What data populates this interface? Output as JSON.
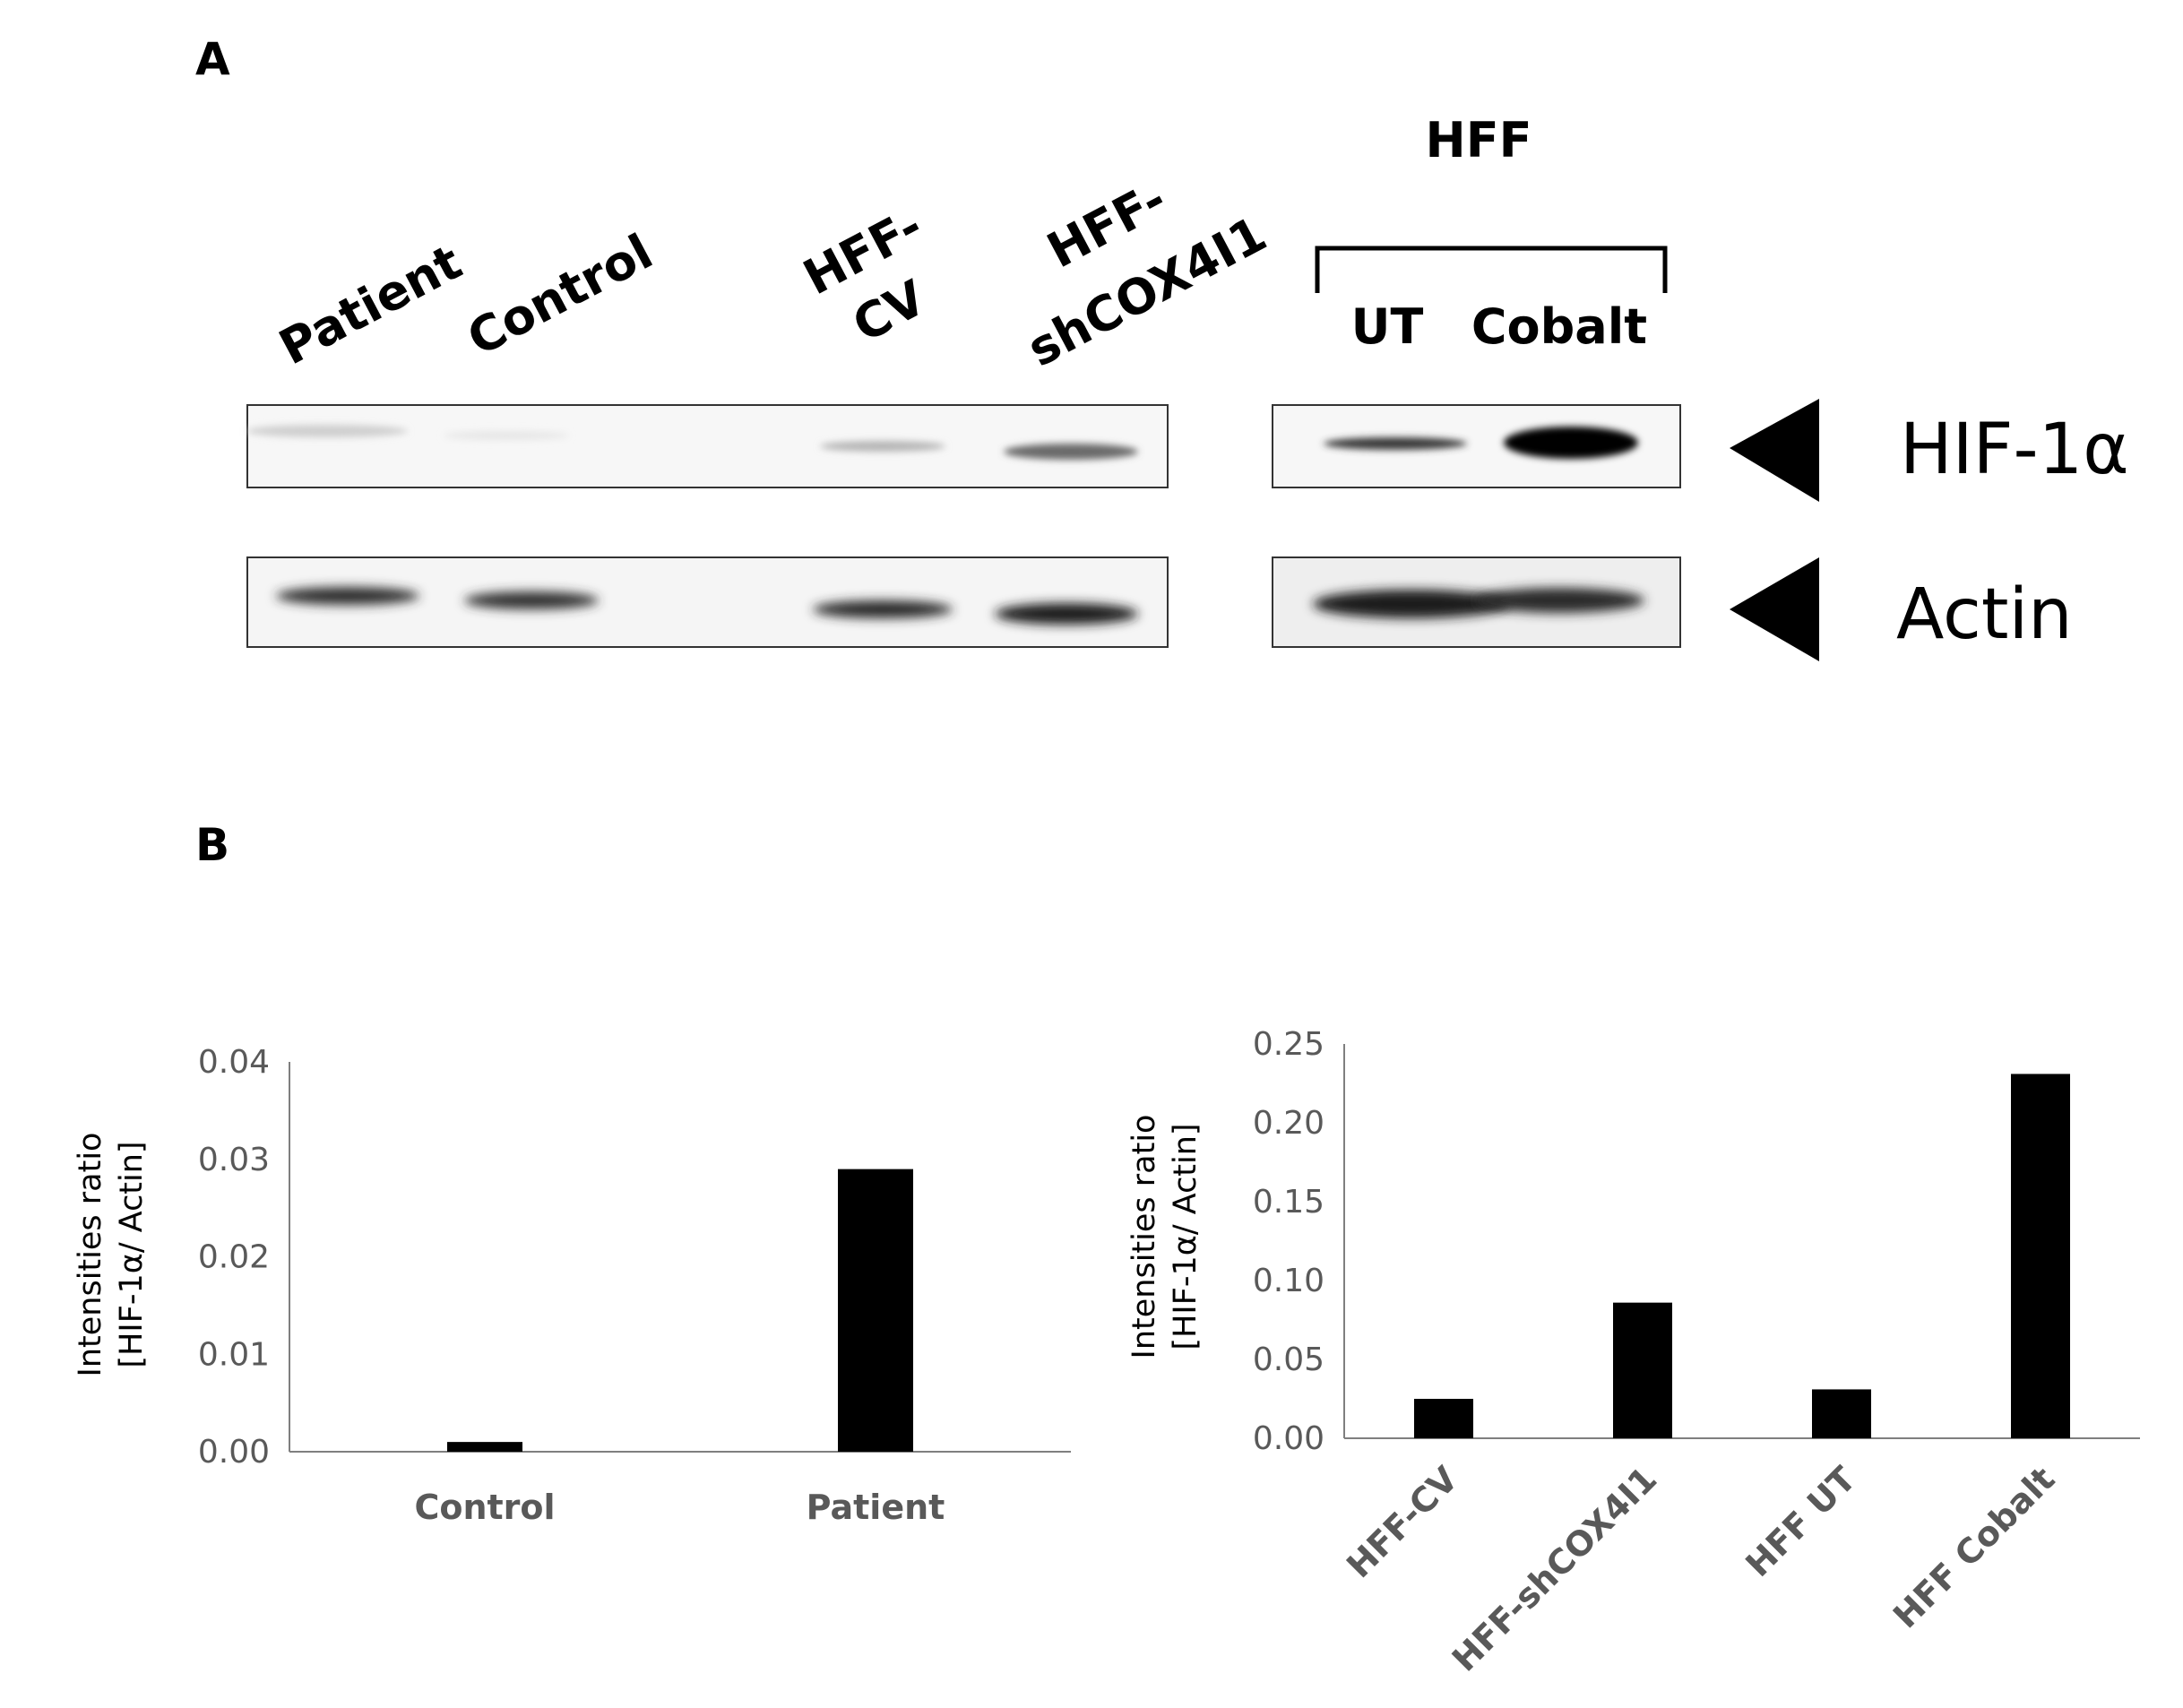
{
  "panels": {
    "a_label": "A",
    "b_label": "B"
  },
  "blot": {
    "group_header": "HFF",
    "lanes_left": [
      {
        "label": "Patient"
      },
      {
        "label": "Control"
      },
      {
        "label_line1": "HFF-",
        "label_line2": "CV"
      },
      {
        "label_line1": "HFF-",
        "label_line2": "shCOX4I1"
      }
    ],
    "lanes_right": [
      "UT",
      "Cobalt"
    ],
    "bands": [
      "HIF-1α",
      "Actin"
    ],
    "relative_band_intensity": {
      "HIF-1α": {
        "Patient": 0.08,
        "Control": 0.04,
        "HFF-CV": 0.25,
        "HFF-shCOX4I1": 0.7,
        "UT": 0.85,
        "Cobalt": 1.0
      },
      "Actin": {
        "Patient": 0.85,
        "Control": 0.8,
        "HFF-CV": 0.8,
        "HFF-shCOX4I1": 0.9,
        "UT": 0.95,
        "Cobalt": 0.9
      }
    }
  },
  "colors": {
    "bar": "#000000",
    "axis": "#7f7f7f",
    "tick_text": "#595959"
  },
  "chart_data": [
    {
      "type": "bar",
      "categories": [
        "Control",
        "Patient"
      ],
      "values": [
        0.001,
        0.029
      ],
      "ylabel_line1": "Intensities ratio",
      "ylabel_line2": "[HIF-1α/ Actin]",
      "ylim": [
        0,
        0.04
      ],
      "yticks": [
        "0.00",
        "0.01",
        "0.02",
        "0.03",
        "0.04"
      ],
      "grid": false,
      "legend": "none"
    },
    {
      "type": "bar",
      "categories": [
        "HFF-CV",
        "HFF-shCOX4I1",
        "HFF UT",
        "HFF Cobalt"
      ],
      "values": [
        0.025,
        0.086,
        0.031,
        0.231
      ],
      "ylabel_line1": "Intensities ratio",
      "ylabel_line2": "[HIF-1α/ Actin]",
      "ylim": [
        0,
        0.25
      ],
      "yticks": [
        "0.00",
        "0.05",
        "0.10",
        "0.15",
        "0.20",
        "0.25"
      ],
      "grid": false,
      "legend": "none"
    }
  ]
}
